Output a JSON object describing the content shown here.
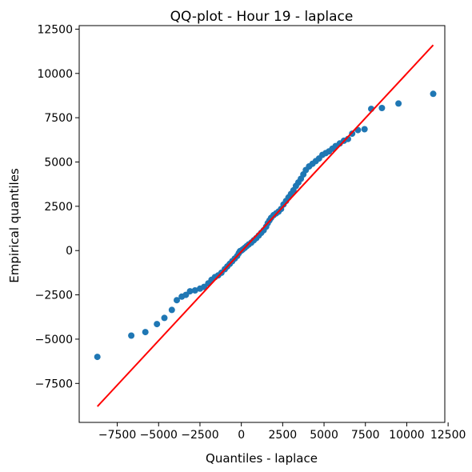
{
  "chart_data": {
    "type": "scatter",
    "title": "QQ-plot - Hour 19 - laplace",
    "xlabel": "Quantiles - laplace",
    "ylabel": "Empirical quantiles",
    "xlim": [
      -9800,
      12300
    ],
    "ylim": [
      -9700,
      12700
    ],
    "xticks": [
      -7500,
      -5000,
      -2500,
      0,
      2500,
      5000,
      7500,
      10000,
      12500
    ],
    "xtick_labels": [
      "−7500",
      "−5000",
      "−2500",
      "0",
      "2500",
      "5000",
      "7500",
      "10000",
      "12500"
    ],
    "yticks": [
      -7500,
      -5000,
      -2500,
      0,
      2500,
      5000,
      7500,
      10000,
      12500
    ],
    "ytick_labels": [
      "−7500",
      "−5000",
      "−2500",
      "0",
      "2500",
      "5000",
      "7500",
      "10000",
      "12500"
    ],
    "grid": false,
    "point_color": "#1f77b4",
    "line_color": "#ff0000",
    "reference_line": {
      "x": [
        -8700,
        11600
      ],
      "y": [
        -8800,
        11600
      ]
    },
    "points": [
      [
        -8700,
        -6000
      ],
      [
        -6650,
        -4800
      ],
      [
        -5800,
        -4600
      ],
      [
        -5100,
        -4150
      ],
      [
        -4650,
        -3800
      ],
      [
        -4200,
        -3350
      ],
      [
        -3900,
        -2800
      ],
      [
        -3600,
        -2600
      ],
      [
        -3350,
        -2500
      ],
      [
        -3100,
        -2300
      ],
      [
        -2800,
        -2250
      ],
      [
        -2500,
        -2150
      ],
      [
        -2250,
        -2050
      ],
      [
        -2000,
        -1850
      ],
      [
        -1800,
        -1650
      ],
      [
        -1600,
        -1500
      ],
      [
        -1400,
        -1400
      ],
      [
        -1200,
        -1250
      ],
      [
        -1000,
        -1050
      ],
      [
        -850,
        -900
      ],
      [
        -700,
        -750
      ],
      [
        -550,
        -600
      ],
      [
        -400,
        -450
      ],
      [
        -250,
        -300
      ],
      [
        -150,
        -150
      ],
      [
        -80,
        -30
      ],
      [
        0,
        0
      ],
      [
        80,
        60
      ],
      [
        200,
        150
      ],
      [
        320,
        250
      ],
      [
        450,
        350
      ],
      [
        600,
        450
      ],
      [
        750,
        580
      ],
      [
        900,
        700
      ],
      [
        1050,
        850
      ],
      [
        1200,
        1000
      ],
      [
        1350,
        1150
      ],
      [
        1500,
        1350
      ],
      [
        1600,
        1550
      ],
      [
        1700,
        1700
      ],
      [
        1800,
        1850
      ],
      [
        1950,
        2000
      ],
      [
        2100,
        2100
      ],
      [
        2250,
        2200
      ],
      [
        2400,
        2350
      ],
      [
        2550,
        2600
      ],
      [
        2700,
        2800
      ],
      [
        2850,
        3000
      ],
      [
        3000,
        3200
      ],
      [
        3150,
        3400
      ],
      [
        3300,
        3650
      ],
      [
        3450,
        3850
      ],
      [
        3600,
        4050
      ],
      [
        3750,
        4300
      ],
      [
        3900,
        4550
      ],
      [
        4100,
        4750
      ],
      [
        4300,
        4900
      ],
      [
        4500,
        5050
      ],
      [
        4700,
        5200
      ],
      [
        4900,
        5400
      ],
      [
        5100,
        5500
      ],
      [
        5300,
        5600
      ],
      [
        5500,
        5750
      ],
      [
        5700,
        5900
      ],
      [
        5950,
        6050
      ],
      [
        6200,
        6200
      ],
      [
        6450,
        6300
      ],
      [
        6700,
        6600
      ],
      [
        7050,
        6800
      ],
      [
        7450,
        6850
      ],
      [
        7850,
        8000
      ],
      [
        8500,
        8050
      ],
      [
        9500,
        8300
      ],
      [
        11600,
        8850
      ]
    ]
  }
}
